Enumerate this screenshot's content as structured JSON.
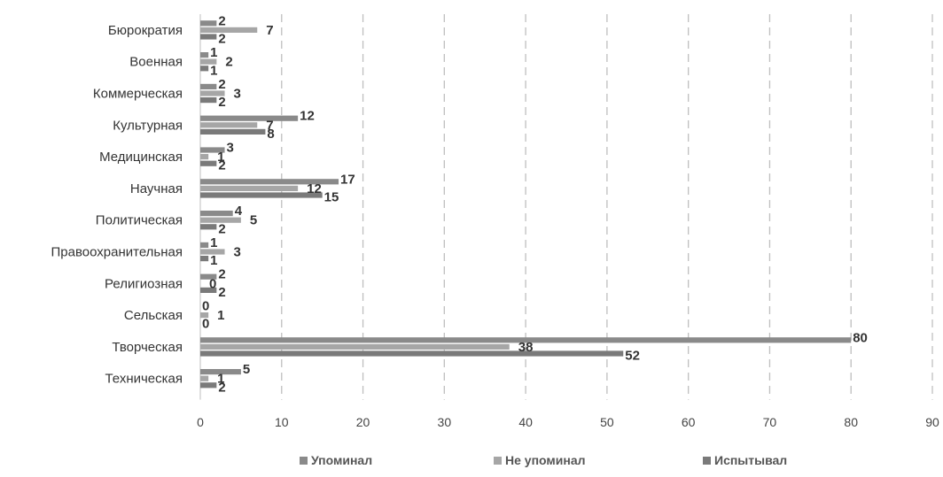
{
  "chart_data": {
    "type": "bar",
    "orientation": "horizontal",
    "categories": [
      "Бюрократия",
      "Военная",
      "Коммерческая",
      "Культурная",
      "Медицинская",
      "Научная",
      "Политическая",
      "Правоохранительная",
      "Религиозная",
      "Сельская",
      "Творческая",
      "Техническая"
    ],
    "series": [
      {
        "name": "Упоминал",
        "values": [
          2,
          1,
          2,
          12,
          3,
          17,
          4,
          1,
          2,
          0,
          80,
          5
        ],
        "color": "#8a8a8a"
      },
      {
        "name": "Не упоминал",
        "values": [
          7,
          2,
          3,
          7,
          1,
          12,
          5,
          3,
          0,
          1,
          38,
          1
        ],
        "color": "#a6a6a6"
      },
      {
        "name": "Испытывал",
        "values": [
          2,
          1,
          2,
          8,
          2,
          15,
          2,
          1,
          2,
          0,
          52,
          2
        ],
        "color": "#7a7a7a"
      }
    ],
    "xlim": [
      0,
      90
    ],
    "xticks": [
      0,
      10,
      20,
      30,
      40,
      50,
      60,
      70,
      80,
      90
    ],
    "grid": "vertical-dashed",
    "legend_position": "bottom"
  }
}
